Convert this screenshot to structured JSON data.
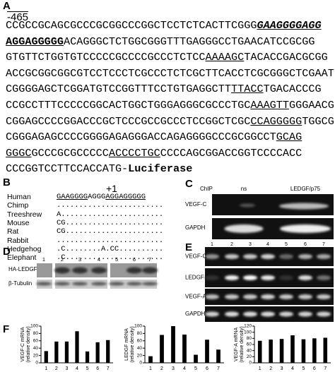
{
  "panels": {
    "a": "A",
    "b": "B",
    "c": "C",
    "d": "D",
    "e": "E",
    "f": "F"
  },
  "sequence": {
    "start": "-465",
    "lines": [
      [
        {
          "text": "CCGCCGCAGCGCCCGCGGCCCGGCTCCTCTCACTTCGGG"
        },
        {
          "text": "GAAGGGGAGG",
          "underline": true,
          "bold": true,
          "italic": true
        }
      ],
      [
        {
          "text": "AGGAGGGGG",
          "underline": true,
          "bold": true
        },
        {
          "text": "ACAGGGCTCTGGCGGGTTTGAGGGCCTGAACATCCGCGG"
        }
      ],
      [
        {
          "text": "GTGTTCTGGTGTCCCCCGCCCCGCCCTCTCC"
        },
        {
          "text": "AAAAGC",
          "underline": true
        },
        {
          "text": "TACACCGACGCGG"
        }
      ],
      [
        {
          "text": "ACCGCGGCGGCGTCCTCCCTCGCCCTCTCGCTTCACCTCGCGGGCTCGAAT"
        }
      ],
      [
        {
          "text": "CGGGGAGCTCGGATGTCCGGTTTCCTGTGAGGCTT"
        },
        {
          "text": "TTACC",
          "underline": true
        },
        {
          "text": "TGACACCCG"
        }
      ],
      [
        {
          "text": "CCGCCTTTCCCCCGGCACTGGCTGGGAGGGCGCCCTGC"
        },
        {
          "text": "AAAGTT",
          "underline": true
        },
        {
          "text": "GGGAACG"
        }
      ],
      [
        {
          "text": "CGGAGCCCCGGACCCGCTCCCGCCGCCCTCCGGCTCGC"
        },
        {
          "text": "CCAGGGGG",
          "underline": true
        },
        {
          "text": "TGGCG"
        }
      ],
      [
        {
          "text": "CGGGAGAGCCCCGGGGAGAGGGACCAGAGGGGCCCGCGGCCT"
        },
        {
          "text": "GCAG",
          "underline": true
        }
      ],
      [
        {
          "text": "GGGC",
          "underline": true
        },
        {
          "text": "GCCCGCGCCCCC"
        },
        {
          "text": "ACCCCTGC",
          "underline": true
        },
        {
          "text": "CCCCAGCGGACCGGTCCCCACC"
        }
      ],
      [
        {
          "text": "CCCGGTCCTTCCACCATG-"
        },
        {
          "text": "Luciferase",
          "bold": true
        }
      ]
    ]
  },
  "alignment": {
    "marker": "+1",
    "rows": [
      {
        "species": "Human",
        "segments": [
          {
            "text": "GAAGGGG",
            "underline": true
          },
          {
            "text": "AGGG"
          },
          {
            "text": "AGGAGGGGG",
            "underline": true
          }
        ]
      },
      {
        "species": "Chimp",
        "segments": [
          {
            "text": "........................"
          }
        ]
      },
      {
        "species": "Treeshrew",
        "segments": [
          {
            "text": "A......................."
          }
        ]
      },
      {
        "species": "Mouse",
        "segments": [
          {
            "text": "CG......................"
          }
        ]
      },
      {
        "species": "Rat",
        "segments": [
          {
            "text": "CG......................"
          }
        ]
      },
      {
        "species": "Rabbit",
        "segments": [
          {
            "text": "........................"
          }
        ]
      },
      {
        "species": "Hedgehog",
        "segments": [
          {
            "text": ".C........A.CC.........."
          }
        ]
      },
      {
        "species": "Elephant",
        "segments": [
          {
            "text": ".C......................"
          }
        ]
      }
    ]
  },
  "chip": {
    "header": "ChIP",
    "columns": [
      "ns",
      "LEDGF/p75"
    ],
    "rows": [
      "VEGF-C",
      "GAPDH"
    ]
  },
  "western": {
    "lanes": [
      "1",
      "2",
      "3",
      "4",
      "5",
      "6",
      "7"
    ],
    "rows": [
      "HA-LEDGF",
      "β-Tubulin"
    ]
  },
  "rtpcr": {
    "lanes": [
      "1",
      "2",
      "3",
      "4",
      "5",
      "6",
      "7"
    ],
    "rows": [
      "VEGF-C",
      "LEDGF",
      "VEGF-A",
      "GAPDH"
    ]
  },
  "chart_data": [
    {
      "type": "bar",
      "ylabel": [
        "VEGF-C mRNA",
        "(relative density)"
      ],
      "categories": [
        "1",
        "2",
        "3",
        "4",
        "5",
        "6",
        "7"
      ],
      "values": [
        32,
        58,
        58,
        86,
        31,
        56,
        62
      ],
      "color": "#000000",
      "ylim": [
        0,
        100
      ],
      "yticks": [
        0,
        20,
        40,
        60,
        80,
        100
      ]
    },
    {
      "type": "bar",
      "ylabel": [
        "LEDGF mRNA",
        "(relative density)"
      ],
      "categories": [
        "1",
        "2",
        "3",
        "4",
        "5",
        "6",
        "7"
      ],
      "values": [
        18,
        76,
        100,
        77,
        22,
        63,
        36
      ],
      "color": "#000000",
      "ylim": [
        0,
        100
      ],
      "yticks": [
        0,
        20,
        40,
        60,
        80,
        100
      ]
    },
    {
      "type": "bar",
      "ylabel": [
        "VEGF-A mRNA",
        "(relative density)"
      ],
      "categories": [
        "1",
        "2",
        "3",
        "4",
        "5",
        "6",
        "7"
      ],
      "values": [
        72,
        76,
        78,
        90,
        77,
        80,
        82
      ],
      "color": "#000000",
      "ylim": [
        0,
        120
      ],
      "yticks": [
        0,
        20,
        40,
        60,
        80,
        100,
        120
      ]
    }
  ]
}
